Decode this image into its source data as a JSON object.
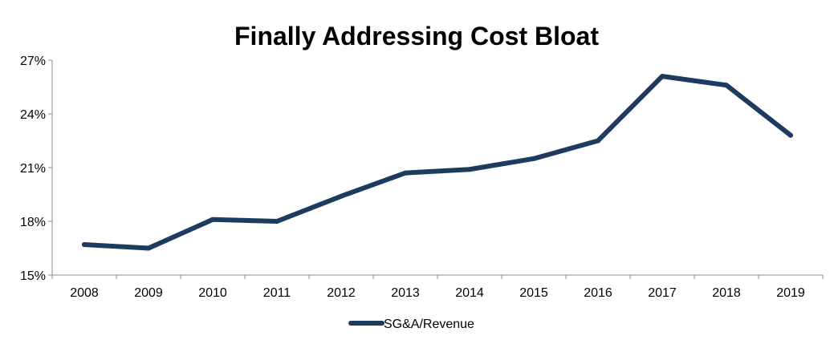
{
  "chart_data": {
    "type": "line",
    "title": "Finally Addressing Cost Bloat",
    "xlabel": "",
    "ylabel": "",
    "categories": [
      "2008",
      "2009",
      "2010",
      "2011",
      "2012",
      "2013",
      "2014",
      "2015",
      "2016",
      "2017",
      "2018",
      "2019"
    ],
    "series": [
      {
        "name": "SG&A/Revenue",
        "color": "#1f3a5f",
        "values": [
          16.7,
          16.5,
          18.1,
          18.0,
          19.4,
          20.7,
          20.9,
          21.5,
          22.5,
          26.1,
          25.6,
          22.8
        ]
      }
    ],
    "ylim": [
      15,
      27
    ],
    "yticks": [
      15,
      18,
      21,
      24,
      27
    ],
    "ytick_labels": [
      "15%",
      "18%",
      "21%",
      "24%",
      "27%"
    ],
    "grid": false,
    "legend": "bottom"
  }
}
